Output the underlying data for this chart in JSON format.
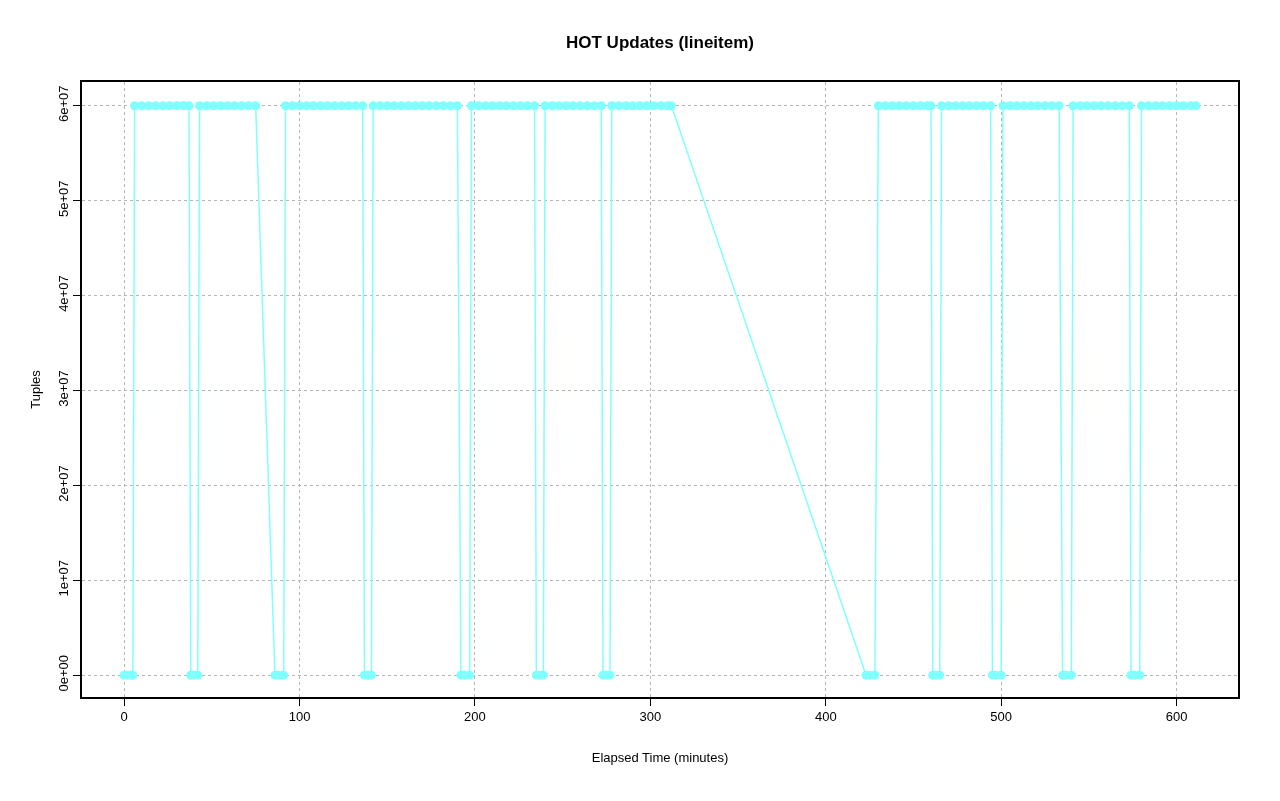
{
  "chart_data": {
    "type": "line",
    "title": "HOT Updates (lineitem)",
    "xlabel": "Elapsed Time (minutes)",
    "ylabel": "Tuples",
    "xlim": [
      -24,
      635
    ],
    "xticks": [
      0,
      100,
      200,
      300,
      400,
      500,
      600
    ],
    "ylim": [
      -2300000,
      62500000
    ],
    "yticks": [
      {
        "value": 0,
        "label": "0e+00"
      },
      {
        "value": 10000000,
        "label": "1e+07"
      },
      {
        "value": 20000000,
        "label": "2e+07"
      },
      {
        "value": 30000000,
        "label": "3e+07"
      },
      {
        "value": 40000000,
        "label": "4e+07"
      },
      {
        "value": 50000000,
        "label": "5e+07"
      },
      {
        "value": 60000000,
        "label": "6e+07"
      }
    ],
    "grid": true,
    "marker": "circle",
    "line_style": "solid",
    "series": [
      {
        "color": "#80ffff",
        "x": [
          0,
          2,
          4,
          5,
          6,
          10,
          14,
          18,
          22,
          26,
          30,
          34,
          37,
          38,
          40,
          42,
          43,
          47,
          51,
          55,
          59,
          63,
          67,
          71,
          75,
          86,
          88,
          91,
          92,
          96,
          100,
          104,
          108,
          112,
          116,
          120,
          124,
          128,
          132,
          136,
          137,
          139,
          141,
          142,
          146,
          150,
          154,
          158,
          162,
          166,
          170,
          174,
          178,
          182,
          186,
          190,
          192,
          194,
          197,
          198,
          202,
          206,
          210,
          214,
          218,
          222,
          226,
          230,
          234,
          235,
          237,
          239,
          240,
          244,
          248,
          252,
          256,
          260,
          264,
          268,
          272,
          273,
          275,
          277,
          278,
          282,
          286,
          290,
          294,
          298,
          302,
          306,
          310,
          312,
          423,
          425,
          428,
          430,
          434,
          438,
          442,
          446,
          450,
          454,
          458,
          460,
          461,
          463,
          465,
          466,
          470,
          474,
          478,
          482,
          486,
          490,
          494,
          495,
          497,
          500,
          501,
          505,
          509,
          513,
          517,
          521,
          525,
          529,
          533,
          535,
          537,
          540,
          541,
          545,
          549,
          553,
          557,
          561,
          565,
          569,
          573,
          574,
          576,
          579,
          580,
          584,
          588,
          592,
          596,
          600,
          604,
          608,
          611
        ],
        "values": [
          0,
          0,
          0,
          0,
          60000000,
          60000000,
          60000000,
          60000000,
          60000000,
          60000000,
          60000000,
          60000000,
          60000000,
          0,
          0,
          0,
          60000000,
          60000000,
          60000000,
          60000000,
          60000000,
          60000000,
          60000000,
          60000000,
          60000000,
          0,
          0,
          0,
          60000000,
          60000000,
          60000000,
          60000000,
          60000000,
          60000000,
          60000000,
          60000000,
          60000000,
          60000000,
          60000000,
          60000000,
          0,
          0,
          0,
          60000000,
          60000000,
          60000000,
          60000000,
          60000000,
          60000000,
          60000000,
          60000000,
          60000000,
          60000000,
          60000000,
          60000000,
          60000000,
          0,
          0,
          0,
          60000000,
          60000000,
          60000000,
          60000000,
          60000000,
          60000000,
          60000000,
          60000000,
          60000000,
          60000000,
          0,
          0,
          0,
          60000000,
          60000000,
          60000000,
          60000000,
          60000000,
          60000000,
          60000000,
          60000000,
          60000000,
          0,
          0,
          0,
          60000000,
          60000000,
          60000000,
          60000000,
          60000000,
          60000000,
          60000000,
          60000000,
          60000000,
          60000000,
          0,
          0,
          0,
          60000000,
          60000000,
          60000000,
          60000000,
          60000000,
          60000000,
          60000000,
          60000000,
          60000000,
          0,
          0,
          0,
          60000000,
          60000000,
          60000000,
          60000000,
          60000000,
          60000000,
          60000000,
          60000000,
          0,
          0,
          0,
          60000000,
          60000000,
          60000000,
          60000000,
          60000000,
          60000000,
          60000000,
          60000000,
          60000000,
          0,
          0,
          0,
          60000000,
          60000000,
          60000000,
          60000000,
          60000000,
          60000000,
          60000000,
          60000000,
          60000000,
          0,
          0,
          0,
          60000000,
          60000000,
          60000000,
          60000000,
          60000000,
          60000000,
          60000000,
          60000000,
          60000000
        ]
      }
    ]
  }
}
